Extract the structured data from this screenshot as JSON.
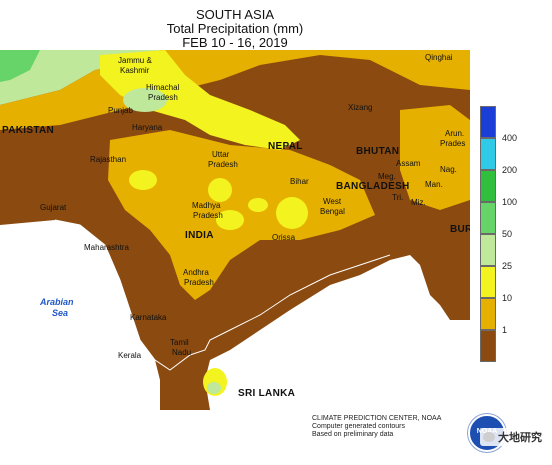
{
  "header": {
    "region": "SOUTH ASIA",
    "product": "Total Precipitation (mm)",
    "period": "FEB 10 - 16, 2019"
  },
  "map": {
    "labels": {
      "jammu_kashmir_1": "Jammu &",
      "jammu_kashmir_2": "Kashmir",
      "himachal_1": "Himachal",
      "himachal_2": "Pradesh",
      "punjab": "Punjab",
      "haryana": "Haryana",
      "pakistan": "PAKISTAN",
      "rajasthan": "Rajasthan",
      "uttar_1": "Uttar",
      "uttar_2": "Pradesh",
      "nepal": "NEPAL",
      "bihar": "Bihar",
      "bhutan": "BHUTAN",
      "assam": "Assam",
      "bangladesh": "BANGLADESH",
      "gujarat": "Gujarat",
      "madhya_1": "Madhya",
      "madhya_2": "Pradesh",
      "india": "INDIA",
      "west_1": "West",
      "west_2": "Bengal",
      "orissa": "Orissa",
      "maharashtra": "Maharashtra",
      "andhra_1": "Andhra",
      "andhra_2": "Pradesh",
      "karnataka": "Karnataka",
      "tamil_1": "Tamil",
      "tamil_2": "Nadu",
      "kerala": "Kerala",
      "sri_lanka": "SRI LANKA",
      "arabian_sea_1": "Arabian",
      "arabian_sea_2": "Sea",
      "qinghai": "Qinghai",
      "xizang": "Xizang",
      "arun_1": "Arun.",
      "arun_2": "Prades",
      "nag": "Nag.",
      "meg": "Meg.",
      "man": "Man.",
      "tri": "Tri.",
      "miz": "Miz.",
      "bur": "BUR"
    }
  },
  "legend": {
    "items": [
      {
        "label": "400",
        "color": "#1b3fd6"
      },
      {
        "label": "200",
        "color": "#31c9e8"
      },
      {
        "label": "100",
        "color": "#2fbf3d"
      },
      {
        "label": "50",
        "color": "#67d46a"
      },
      {
        "label": "25",
        "color": "#bfe89b"
      },
      {
        "label": "10",
        "color": "#f3f31f"
      },
      {
        "label": "1",
        "color": "#e6b000"
      },
      {
        "label": "",
        "color": "#8a4a10"
      }
    ]
  },
  "credit": {
    "line1": "CLIMATE PREDICTION CENTER, NOAA",
    "line2": "Computer generated contours",
    "line3": "Based on preliminary data"
  },
  "logo": {
    "text": "NOAA"
  },
  "watermark": {
    "text": "大地研究"
  }
}
